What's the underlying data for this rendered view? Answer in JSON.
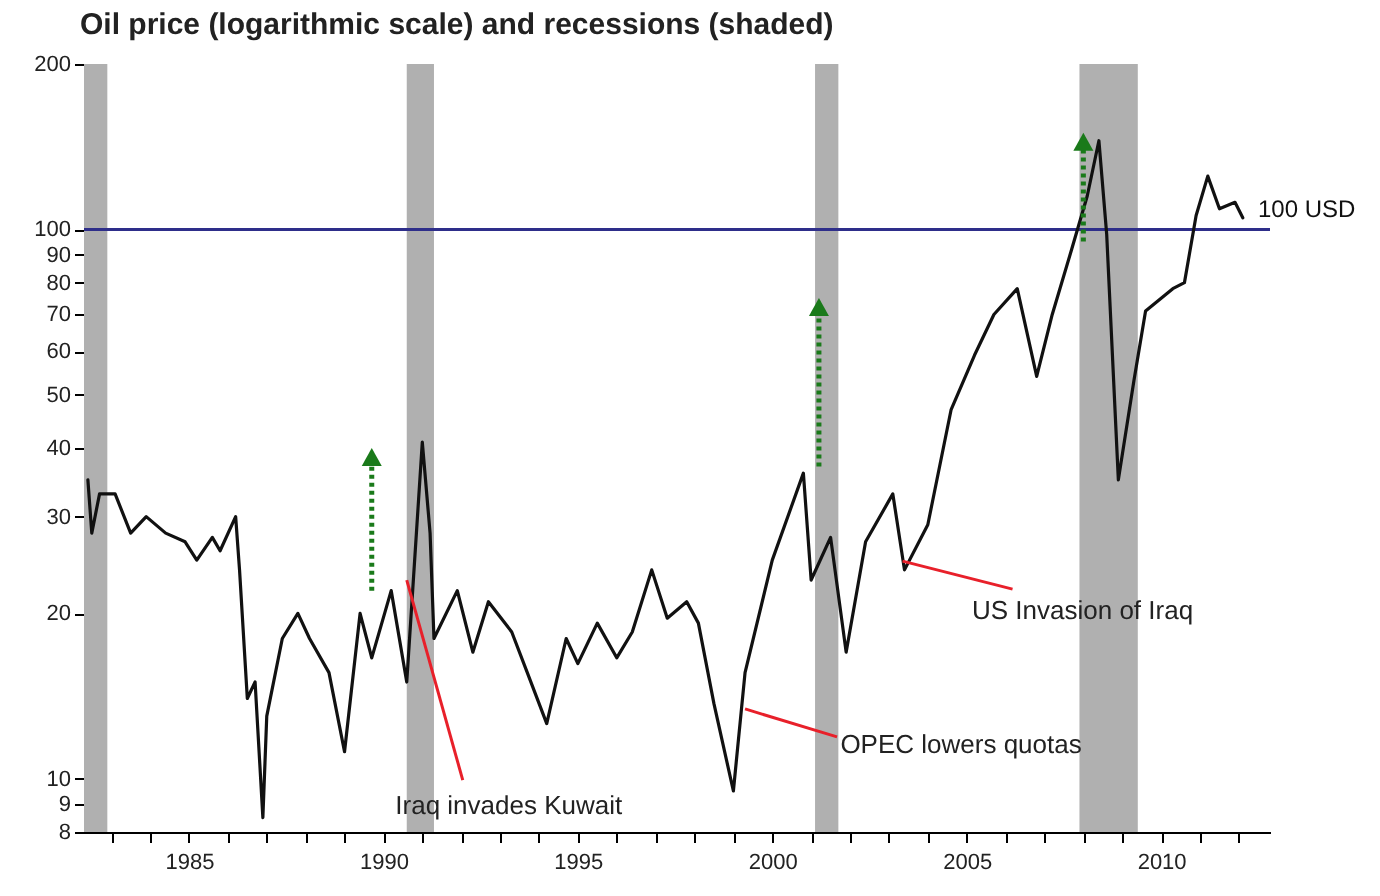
{
  "chart_data": {
    "type": "line",
    "title": "Oil price (logarithmic scale) and recessions (shaded)",
    "x": [
      1982.4,
      1982.5,
      1982.7,
      1983.1,
      1983.5,
      1983.9,
      1984.4,
      1984.9,
      1985.2,
      1985.6,
      1985.8,
      1986.2,
      1986.3,
      1986.5,
      1986.7,
      1986.9,
      1987.0,
      1987.4,
      1987.8,
      1988.1,
      1988.6,
      1989.0,
      1989.4,
      1989.7,
      1990.2,
      1990.6,
      1991.0,
      1991.2,
      1991.3,
      1991.9,
      1992.3,
      1992.7,
      1993.3,
      1993.7,
      1994.2,
      1994.7,
      1995.0,
      1995.5,
      1996.0,
      1996.4,
      1996.9,
      1997.3,
      1997.8,
      1998.1,
      1998.5,
      1999.0,
      1999.3,
      2000.0,
      2000.8,
      2001.0,
      2001.5,
      2001.9,
      2002.4,
      2003.1,
      2003.4,
      2004.0,
      2004.6,
      2005.2,
      2005.7,
      2006.3,
      2006.8,
      2007.2,
      2007.7,
      2008.1,
      2008.4,
      2008.6,
      2008.9,
      2009.3,
      2009.6,
      2010.3,
      2010.6,
      2010.9,
      2011.2,
      2011.5,
      2011.9,
      2012.1
    ],
    "series": [
      {
        "color": "#111111",
        "values": [
          35,
          28,
          33,
          33,
          28,
          30,
          28,
          27,
          25,
          27.5,
          26,
          30,
          24,
          14,
          15,
          8.5,
          13,
          18,
          20,
          18,
          15.6,
          11.2,
          20,
          16.6,
          22,
          15,
          41,
          28,
          18,
          22,
          17,
          21,
          18.5,
          15.6,
          12.6,
          18,
          16.2,
          19.2,
          16.6,
          18.5,
          24,
          19.6,
          21,
          19.2,
          13.7,
          9.5,
          15.6,
          25,
          36,
          23,
          27.5,
          17,
          27,
          33,
          24,
          29,
          47,
          59,
          70,
          78,
          54,
          70,
          92,
          115,
          145,
          98,
          35,
          53,
          71,
          78,
          80,
          106,
          125,
          109,
          112,
          105
        ]
      }
    ],
    "xlim": [
      1982.3,
      2012.8
    ],
    "ylim": [
      8,
      200
    ],
    "log": "y",
    "xticks": [
      {
        "value": 1983,
        "label": null
      },
      {
        "value": 1984,
        "label": null
      },
      1985,
      {
        "value": 1986,
        "label": null
      },
      {
        "value": 1987,
        "label": null
      },
      {
        "value": 1988,
        "label": null
      },
      {
        "value": 1989,
        "label": null
      },
      1990,
      {
        "value": 1991,
        "label": null
      },
      {
        "value": 1992,
        "label": null
      },
      {
        "value": 1993,
        "label": null
      },
      {
        "value": 1994,
        "label": null
      },
      1995,
      {
        "value": 1996,
        "label": null
      },
      {
        "value": 1997,
        "label": null
      },
      {
        "value": 1998,
        "label": null
      },
      {
        "value": 1999,
        "label": null
      },
      2000,
      {
        "value": 2001,
        "label": null
      },
      {
        "value": 2002,
        "label": null
      },
      {
        "value": 2003,
        "label": null
      },
      {
        "value": 2004,
        "label": null
      },
      2005,
      {
        "value": 2006,
        "label": null
      },
      {
        "value": 2007,
        "label": null
      },
      {
        "value": 2008,
        "label": null
      },
      {
        "value": 2009,
        "label": null
      },
      2010,
      {
        "value": 2011,
        "label": null
      },
      {
        "value": 2012,
        "label": null
      }
    ],
    "yticks": [
      8,
      9,
      10,
      20,
      30,
      40,
      50,
      60,
      70,
      80,
      90,
      100,
      200
    ],
    "bands": [
      {
        "axis": "x",
        "from": 1982.3,
        "to": 1982.9,
        "color": "#b0b0b0"
      },
      {
        "axis": "x",
        "from": 1990.6,
        "to": 1991.3,
        "color": "#b0b0b0"
      },
      {
        "axis": "x",
        "from": 2001.1,
        "to": 2001.7,
        "color": "#b0b0b0"
      },
      {
        "axis": "x",
        "from": 2007.9,
        "to": 2009.4,
        "color": "#b0b0b0"
      }
    ],
    "ref_lines": [
      {
        "axis": "y",
        "value": 100,
        "label": "100 USD",
        "color": "#2e2e8a"
      }
    ],
    "annotations": [
      {
        "text": "Iraq invades Kuwait",
        "x": 1990.6,
        "y": 23
      },
      {
        "text": "OPEC lowers quotas",
        "x": 1999.3,
        "y": 13.4
      },
      {
        "text": "US Invasion of Iraq",
        "x": 2003.35,
        "y": 24.9
      }
    ],
    "grid": false,
    "marker": "none",
    "line_style": "solid"
  }
}
